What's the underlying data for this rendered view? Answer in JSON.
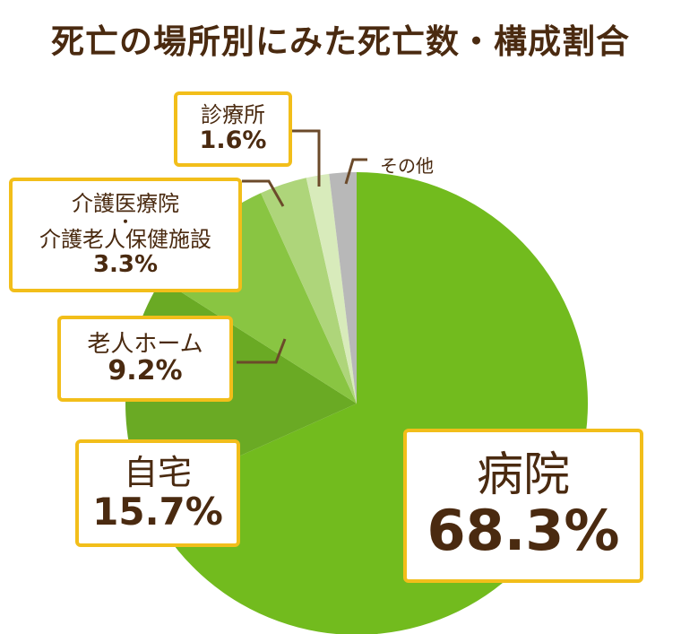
{
  "chart_data": {
    "type": "pie",
    "title": "死亡の場所別にみた死亡数・構成割合",
    "slices": [
      {
        "key": "hospital",
        "label": "病院",
        "value": 68.3,
        "value_text": "68.3%",
        "color": "#72bb1e"
      },
      {
        "key": "home",
        "label": "自宅",
        "value": 15.7,
        "value_text": "15.7%",
        "color": "#6aaa24"
      },
      {
        "key": "nursing",
        "label": "老人ホーム",
        "value": 9.2,
        "value_text": "9.2%",
        "color": "#89c542"
      },
      {
        "key": "care",
        "label_line1": "介護医療院",
        "label_dot": "・",
        "label_line2": "介護老人保健施設",
        "value": 3.3,
        "value_text": "3.3%",
        "color": "#aed57a"
      },
      {
        "key": "clinic",
        "label": "診療所",
        "value": 1.6,
        "value_text": "1.6%",
        "color": "#d8ebbb"
      },
      {
        "key": "other",
        "label": "その他",
        "value": 1.9,
        "value_text": "",
        "color": "#b8b8b8"
      }
    ],
    "start": "12 o'clock",
    "direction": "clockwise",
    "label_border_color": "#f2be1a",
    "text_color": "#4a2a10",
    "leader_color": "#6b4a2a"
  }
}
